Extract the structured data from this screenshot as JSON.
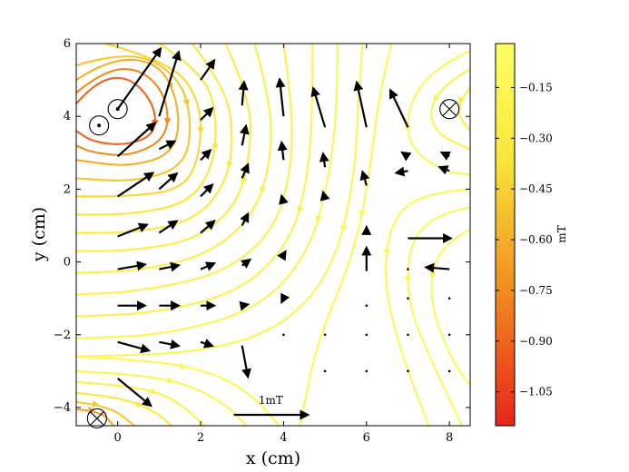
{
  "chart_data": {
    "type": "streamplot",
    "xlabel": "x (cm)",
    "ylabel": "y (cm)",
    "xlim": [
      -1,
      8.5
    ],
    "ylim": [
      -4.5,
      6
    ],
    "x_ticks": [
      0,
      2,
      4,
      6,
      8
    ],
    "x_tick_labels": [
      "0",
      "2",
      "4",
      "6",
      "8"
    ],
    "y_ticks": [
      -4,
      -2,
      0,
      2,
      4,
      6
    ],
    "y_tick_labels": [
      "−4",
      "−2",
      "0",
      "2",
      "4",
      "6"
    ],
    "colorbar": {
      "label": "mT",
      "range": [
        -1.15,
        -0.02
      ],
      "ticks": [
        -0.15,
        -0.3,
        -0.45,
        -0.6,
        -0.75,
        -0.9,
        -1.05
      ],
      "tick_labels": [
        "−0.15",
        "−0.30",
        "−0.45",
        "−0.60",
        "−0.75",
        "−0.90",
        "−1.05"
      ],
      "colors": [
        "#e8251b",
        "#f08a1e",
        "#f9e63a",
        "#ffff66"
      ]
    },
    "sources": [
      {
        "kind": "dot",
        "x": -0.45,
        "y": 3.75
      },
      {
        "kind": "dot",
        "x": 0.0,
        "y": 4.2
      },
      {
        "kind": "cross",
        "x": 8.0,
        "y": 4.2
      },
      {
        "kind": "cross",
        "x": -0.5,
        "y": -4.3
      }
    ],
    "scale_annotation": {
      "label": "1mT",
      "x": 2.8,
      "y": -4.2,
      "dx": 1.9,
      "dy": 0
    },
    "arrows": [
      {
        "x": 0,
        "y": 4.2,
        "dx": 1.1,
        "dy": 1.55
      },
      {
        "x": 0,
        "y": 2.9,
        "dx": 0.95,
        "dy": 0.85
      },
      {
        "x": 0,
        "y": 1.8,
        "dx": 0.9,
        "dy": 0.6
      },
      {
        "x": 0,
        "y": 0.7,
        "dx": 0.75,
        "dy": 0.3
      },
      {
        "x": 0,
        "y": -0.2,
        "dx": 0.7,
        "dy": 0.12
      },
      {
        "x": 0,
        "y": -1.2,
        "dx": 0.7,
        "dy": 0
      },
      {
        "x": 0,
        "y": -2.2,
        "dx": 0.8,
        "dy": -0.22
      },
      {
        "x": 0,
        "y": -3.2,
        "dx": 0.85,
        "dy": -0.7
      },
      {
        "x": 1,
        "y": 4.0,
        "dx": 0.5,
        "dy": 1.65
      },
      {
        "x": 1,
        "y": 3.1,
        "dx": 0.4,
        "dy": 0.2
      },
      {
        "x": 1,
        "y": 2.0,
        "dx": 0.45,
        "dy": 0.4
      },
      {
        "x": 1,
        "y": 0.8,
        "dx": 0.45,
        "dy": 0.3
      },
      {
        "x": 1,
        "y": -0.2,
        "dx": 0.5,
        "dy": 0.1
      },
      {
        "x": 1,
        "y": -1.2,
        "dx": 0.5,
        "dy": 0
      },
      {
        "x": 1,
        "y": -2.2,
        "dx": 0.5,
        "dy": -0.1
      },
      {
        "x": 2,
        "y": 5.0,
        "dx": 0.35,
        "dy": 0.5
      },
      {
        "x": 2,
        "y": 3.9,
        "dx": 0.3,
        "dy": 0.3
      },
      {
        "x": 2,
        "y": 2.8,
        "dx": 0.25,
        "dy": 0.25
      },
      {
        "x": 2,
        "y": 1.8,
        "dx": 0.3,
        "dy": 0.3
      },
      {
        "x": 2,
        "y": 0.8,
        "dx": 0.35,
        "dy": 0.3
      },
      {
        "x": 2,
        "y": -0.2,
        "dx": 0.35,
        "dy": 0.15
      },
      {
        "x": 2,
        "y": -1.2,
        "dx": 0.35,
        "dy": 0
      },
      {
        "x": 2,
        "y": -2.2,
        "dx": 0.3,
        "dy": -0.1
      },
      {
        "x": 3,
        "y": 4.3,
        "dx": 0.05,
        "dy": 0.6
      },
      {
        "x": 3,
        "y": 3.2,
        "dx": 0.1,
        "dy": 0.5
      },
      {
        "x": 3,
        "y": 2.3,
        "dx": 0.15,
        "dy": 0.35
      },
      {
        "x": 3,
        "y": 1.0,
        "dx": 0.15,
        "dy": 0.3
      },
      {
        "x": 3,
        "y": -0.1,
        "dx": 0.2,
        "dy": 0.15
      },
      {
        "x": 3,
        "y": -1.2,
        "dx": 0.15,
        "dy": 0.03
      },
      {
        "x": 3,
        "y": -2.3,
        "dx": 0.15,
        "dy": -0.8
      },
      {
        "x": 4,
        "y": 4.0,
        "dx": -0.1,
        "dy": 0.95
      },
      {
        "x": 4,
        "y": 2.8,
        "dx": -0.05,
        "dy": 0.45
      },
      {
        "x": 4,
        "y": 1.6,
        "dx": -0.05,
        "dy": 0.2
      },
      {
        "x": 4,
        "y": 0.2,
        "dx": 0.05,
        "dy": 0.08
      },
      {
        "x": 4,
        "y": -1.0,
        "dx": -0.05,
        "dy": -0.1
      },
      {
        "x": 5,
        "y": 3.7,
        "dx": -0.3,
        "dy": 1.0
      },
      {
        "x": 5,
        "y": 2.6,
        "dx": -0.05,
        "dy": 0.35
      },
      {
        "x": 5,
        "y": 1.7,
        "dx": -0.05,
        "dy": 0.2
      },
      {
        "x": 6,
        "y": 3.7,
        "dx": -0.25,
        "dy": 1.15
      },
      {
        "x": 6,
        "y": 2.1,
        "dx": -0.1,
        "dy": 0.35
      },
      {
        "x": 6,
        "y": 0.8,
        "dx": 0,
        "dy": 0.15
      },
      {
        "x": 6,
        "y": -0.25,
        "dx": 0,
        "dy": 0.6
      },
      {
        "x": 7,
        "y": 3.7,
        "dx": -0.45,
        "dy": 0.95
      },
      {
        "x": 7,
        "y": 2.5,
        "dx": -0.3,
        "dy": -0.05
      },
      {
        "x": 7,
        "y": 0.65,
        "dx": 1.1,
        "dy": 0
      },
      {
        "x": 7,
        "y": 2.9,
        "dx": -0.15,
        "dy": 0.1
      },
      {
        "x": 8,
        "y": 2.5,
        "dx": -0.25,
        "dy": 0.1
      },
      {
        "x": 8,
        "y": -0.2,
        "dx": -0.6,
        "dy": 0.05
      },
      {
        "x": 8,
        "y": 2.9,
        "dx": -0.2,
        "dy": 0.1
      }
    ],
    "dots": [
      [
        4,
        -2.0
      ],
      [
        5,
        -2.0
      ],
      [
        6,
        -2.0
      ],
      [
        7,
        -2.0
      ],
      [
        8,
        -2.0
      ],
      [
        5,
        -3.0
      ],
      [
        6,
        -3.0
      ],
      [
        7,
        -3.0
      ],
      [
        8,
        -3.0
      ],
      [
        6,
        -1.2
      ],
      [
        7,
        -1.0
      ],
      [
        8,
        -1.0
      ],
      [
        7,
        -0.2
      ]
    ],
    "streamlines": [
      {
        "v": -0.9,
        "pts": [
          [
            -1,
            4.35
          ],
          [
            -0.5,
            5.0
          ],
          [
            0.3,
            5.1
          ],
          [
            0.9,
            4.3
          ],
          [
            0.9,
            3.5
          ],
          [
            0.2,
            3.2
          ],
          [
            -0.6,
            3.3
          ],
          [
            -1,
            3.6
          ]
        ]
      },
      {
        "v": -0.75,
        "pts": [
          [
            -1,
            4.65
          ],
          [
            -0.3,
            5.3
          ],
          [
            0.6,
            5.3
          ],
          [
            1.2,
            4.5
          ],
          [
            1.2,
            3.4
          ],
          [
            0.3,
            2.9
          ],
          [
            -0.6,
            3.0
          ],
          [
            -1,
            3.2
          ]
        ]
      },
      {
        "v": -0.6,
        "pts": [
          [
            -1,
            5.0
          ],
          [
            -0.2,
            5.6
          ],
          [
            1.0,
            5.5
          ],
          [
            1.5,
            4.3
          ],
          [
            1.4,
            3.0
          ],
          [
            0.3,
            2.6
          ],
          [
            -1,
            2.8
          ]
        ]
      },
      {
        "v": -0.5,
        "pts": [
          [
            -1,
            5.4
          ],
          [
            0.3,
            5.85
          ],
          [
            1.5,
            5.1
          ],
          [
            1.8,
            3.8
          ],
          [
            1.6,
            2.6
          ],
          [
            0.4,
            2.2
          ],
          [
            -1,
            2.3
          ]
        ]
      },
      {
        "v": -0.42,
        "pts": [
          [
            -0.3,
            6
          ],
          [
            1.3,
            5.5
          ],
          [
            2.0,
            4.4
          ],
          [
            2.0,
            3.0
          ],
          [
            1.6,
            2.0
          ],
          [
            0.3,
            1.8
          ],
          [
            -1,
            1.8
          ]
        ]
      },
      {
        "v": -0.35,
        "pts": [
          [
            1.0,
            6
          ],
          [
            2.1,
            5.2
          ],
          [
            2.4,
            3.9
          ],
          [
            2.3,
            2.6
          ],
          [
            1.7,
            1.6
          ],
          [
            0.3,
            1.3
          ],
          [
            -1,
            1.3
          ]
        ]
      },
      {
        "v": -0.3,
        "pts": [
          [
            1.8,
            6
          ],
          [
            2.6,
            4.8
          ],
          [
            2.8,
            3.4
          ],
          [
            2.6,
            2.1
          ],
          [
            1.8,
            1.1
          ],
          [
            0.3,
            0.8
          ],
          [
            -1,
            0.8
          ]
        ]
      },
      {
        "v": -0.27,
        "pts": [
          [
            2.6,
            6
          ],
          [
            3.2,
            4.5
          ],
          [
            3.2,
            3.0
          ],
          [
            2.9,
            1.6
          ],
          [
            1.9,
            0.6
          ],
          [
            0.3,
            0.3
          ],
          [
            -1,
            0.3
          ]
        ]
      },
      {
        "v": -0.24,
        "pts": [
          [
            3.3,
            6
          ],
          [
            3.7,
            4.4
          ],
          [
            3.7,
            2.8
          ],
          [
            3.3,
            1.3
          ],
          [
            2.2,
            0.2
          ],
          [
            0.5,
            -0.25
          ],
          [
            -1,
            -0.3
          ]
        ]
      },
      {
        "v": -0.21,
        "pts": [
          [
            4.0,
            6
          ],
          [
            4.2,
            4.4
          ],
          [
            4.2,
            2.6
          ],
          [
            3.8,
            0.9
          ],
          [
            2.6,
            -0.3
          ],
          [
            0.6,
            -0.8
          ],
          [
            -1,
            -0.9
          ]
        ]
      },
      {
        "v": -0.19,
        "pts": [
          [
            4.7,
            6
          ],
          [
            4.7,
            4.3
          ],
          [
            4.6,
            2.4
          ],
          [
            4.2,
            0.6
          ],
          [
            3.0,
            -0.8
          ],
          [
            1.0,
            -1.4
          ],
          [
            -1,
            -1.5
          ]
        ]
      },
      {
        "v": -0.17,
        "pts": [
          [
            5.3,
            6
          ],
          [
            5.3,
            4.3
          ],
          [
            5.1,
            2.3
          ],
          [
            4.6,
            0.2
          ],
          [
            3.4,
            -1.3
          ],
          [
            1.2,
            -2.0
          ],
          [
            -1,
            -2.1
          ]
        ]
      },
      {
        "v": -0.15,
        "pts": [
          [
            5.9,
            6
          ],
          [
            5.8,
            4.3
          ],
          [
            5.7,
            2.2
          ],
          [
            5.2,
            -0.2
          ],
          [
            4.0,
            -1.8
          ],
          [
            2.0,
            -2.5
          ],
          [
            -1,
            -2.6
          ]
        ]
      },
      {
        "v": -0.14,
        "pts": [
          [
            6.6,
            6
          ],
          [
            6.3,
            4.6
          ],
          [
            6.1,
            2.6
          ],
          [
            5.7,
            0.2
          ],
          [
            4.8,
            -2.2
          ],
          [
            4.4,
            -4.5
          ]
        ]
      },
      {
        "v": -0.13,
        "pts": [
          [
            8.5,
            5.8
          ],
          [
            7.6,
            5.3
          ],
          [
            7.0,
            4.3
          ],
          [
            7.0,
            3.2
          ],
          [
            7.8,
            2.5
          ],
          [
            8.5,
            2.4
          ]
        ]
      },
      {
        "v": -0.2,
        "pts": [
          [
            8.5,
            5.3
          ],
          [
            7.9,
            4.9
          ],
          [
            7.5,
            4.2
          ],
          [
            7.7,
            3.5
          ],
          [
            8.5,
            3.1
          ]
        ]
      },
      {
        "v": -0.25,
        "pts": [
          [
            8.5,
            4.8
          ],
          [
            8.1,
            4.2
          ],
          [
            8.5,
            3.6
          ]
        ]
      },
      {
        "v": -0.12,
        "pts": [
          [
            8.5,
            2.0
          ],
          [
            7.4,
            1.9
          ],
          [
            6.6,
            1.2
          ],
          [
            6.4,
            -0.5
          ],
          [
            6.8,
            -2.4
          ],
          [
            7.5,
            -4.5
          ]
        ]
      },
      {
        "v": -0.12,
        "pts": [
          [
            8.5,
            1.5
          ],
          [
            7.6,
            1.3
          ],
          [
            7.0,
            0.4
          ],
          [
            7.0,
            -1.2
          ],
          [
            7.6,
            -2.8
          ],
          [
            8.3,
            -4.5
          ]
        ]
      },
      {
        "v": -0.11,
        "pts": [
          [
            8.5,
            0.9
          ],
          [
            7.7,
            0.4
          ],
          [
            7.5,
            -1.0
          ],
          [
            8.0,
            -2.6
          ],
          [
            8.5,
            -3.4
          ]
        ]
      },
      {
        "v": -0.13,
        "pts": [
          [
            -1,
            -2.6
          ],
          [
            0.8,
            -2.7
          ],
          [
            2.2,
            -3.0
          ],
          [
            3.2,
            -3.6
          ],
          [
            3.9,
            -4.5
          ]
        ]
      },
      {
        "v": -0.15,
        "pts": [
          [
            -1,
            -3.0
          ],
          [
            0.6,
            -3.1
          ],
          [
            1.8,
            -3.4
          ],
          [
            2.7,
            -4.0
          ],
          [
            3.1,
            -4.5
          ]
        ]
      },
      {
        "v": -0.2,
        "pts": [
          [
            -1,
            -3.3
          ],
          [
            0.3,
            -3.4
          ],
          [
            1.3,
            -3.7
          ],
          [
            2.1,
            -4.5
          ]
        ]
      },
      {
        "v": -0.32,
        "pts": [
          [
            -1,
            -3.6
          ],
          [
            0.0,
            -3.7
          ],
          [
            0.9,
            -4.1
          ],
          [
            1.3,
            -4.5
          ]
        ]
      },
      {
        "v": -0.48,
        "pts": [
          [
            -1,
            -3.85
          ],
          [
            -0.2,
            -3.95
          ],
          [
            0.4,
            -4.5
          ]
        ]
      },
      {
        "v": -0.65,
        "pts": [
          [
            -1,
            -4.05
          ],
          [
            -0.4,
            -4.1
          ],
          [
            -0.1,
            -4.5
          ]
        ]
      }
    ]
  }
}
